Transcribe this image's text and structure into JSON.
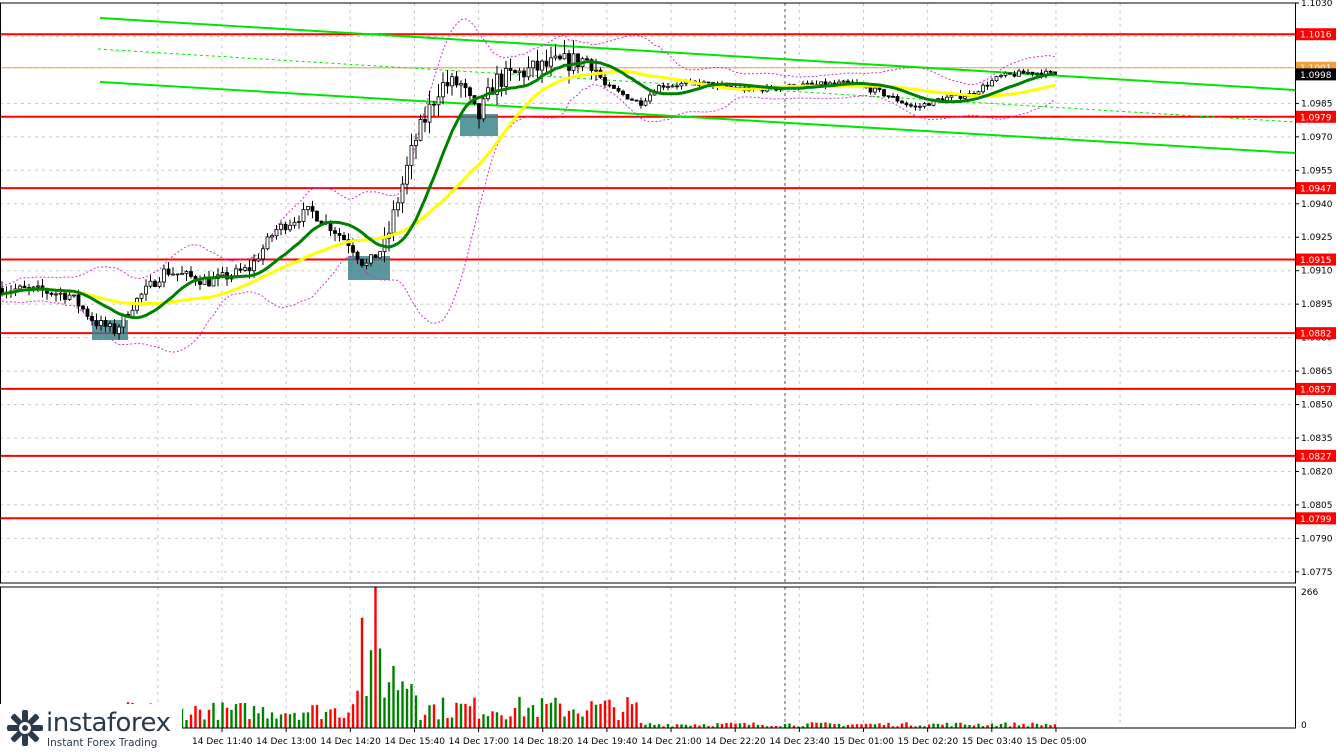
{
  "chart_data": {
    "type": "candlestick",
    "instrument": "",
    "price_axis": {
      "range": [
        1.077,
        1.103
      ],
      "ticks": [
        "1.1030",
        "1.1015",
        "1.1001",
        "1.0985",
        "1.0970",
        "1.0955",
        "1.0940",
        "1.0925",
        "1.0910",
        "1.0895",
        "1.0880",
        "1.0865",
        "1.0850",
        "1.0835",
        "1.0820",
        "1.0805",
        "1.0790",
        "1.0775"
      ]
    },
    "time_axis": {
      "labels": [
        "14 Dec 11:40",
        "14 Dec 13:00",
        "14 Dec 14:20",
        "14 Dec 15:40",
        "14 Dec 17:00",
        "14 Dec 18:20",
        "14 Dec 19:40",
        "14 Dec 21:00",
        "14 Dec 22:20",
        "14 Dec 23:40",
        "15 Dec 01:00",
        "15 Dec 02:20",
        "15 Dec 03:40",
        "15 Dec 05:00"
      ]
    },
    "current_price": "1.0998",
    "levels": [
      {
        "price": 1.1016,
        "label": "1.1016"
      },
      {
        "price": 1.0979,
        "label": "1.0979"
      },
      {
        "price": 1.0947,
        "label": "1.0947"
      },
      {
        "price": 1.0915,
        "label": "1.0915"
      },
      {
        "price": 1.0882,
        "label": "1.0882"
      },
      {
        "price": 1.0857,
        "label": "1.0857"
      },
      {
        "price": 1.0827,
        "label": "1.0827"
      },
      {
        "price": 1.0799,
        "label": "1.0799"
      }
    ],
    "orange_level": {
      "price": 1.1001,
      "label": "1.1001"
    },
    "volume_axis": {
      "max_label": "266",
      "min_label": "0"
    },
    "colors": {
      "resistance_lines": "#ff0000",
      "channel_lines": "#00e600",
      "ma_fast": "#008000",
      "ma_slow": "#ffff00",
      "bands": "#cc33cc",
      "volume_up": "#008000",
      "volume_down": "#ff0000",
      "entry_boxes": "#2f7f86"
    }
  },
  "brand": {
    "name": "instaforex",
    "tagline": "Instant Forex Trading"
  }
}
